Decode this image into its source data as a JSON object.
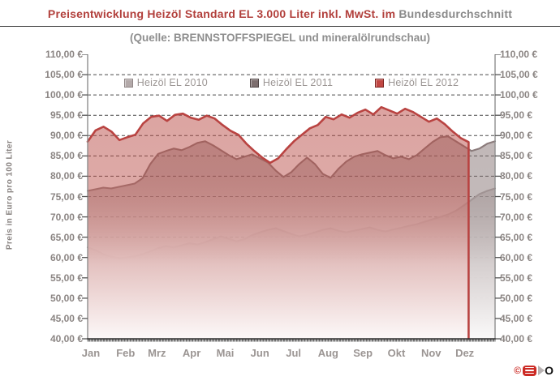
{
  "title": {
    "red_part": "Preisentwicklung Heizöl Standard EL 3.000 Liter inkl. MwSt. im",
    "gray_part": "Bundesdurchschnitt"
  },
  "subtitle": "(Quelle: BRENNSTOFFSPIEGEL und mineralölrundschau)",
  "y_axis": {
    "title": "Preis in Euro pro 100 Liter",
    "min": 40,
    "max": 110,
    "step": 5,
    "tick_labels": [
      "110,00 €",
      "105,00 €",
      "100,00 €",
      "95,00 €",
      "90,00 €",
      "85,00 €",
      "80,00 €",
      "75,00 €",
      "70,00 €",
      "65,00 €",
      "60,00 €",
      "55,00 €",
      "50,00 €",
      "45,00 €",
      "40,00 €"
    ]
  },
  "x_axis": {
    "months": [
      "Jan",
      "Feb",
      "Mrz",
      "Apr",
      "Mai",
      "Jun",
      "Jul",
      "Aug",
      "Sep",
      "Okt",
      "Nov",
      "Dez"
    ]
  },
  "legend": [
    {
      "label": "Heizöl EL 2010",
      "color": "#b3a9a9",
      "border": "#8f8585"
    },
    {
      "label": "Heizöl EL 2011",
      "color": "#7d6e6e",
      "border": "#4f4444"
    },
    {
      "label": "Heizöl EL 2012",
      "color": "#c14743",
      "border": "#7e2522"
    }
  ],
  "logo": {
    "copyright": "©",
    "o_letter": "O"
  },
  "colors": {
    "title_red": "#b2403c",
    "text_gray": "#8e8e8e",
    "grid": "#4a4a4a",
    "axis_border": "#8f8f8f",
    "axis_bottom": "#2f2f2f"
  },
  "chart_data": {
    "type": "area",
    "title": "Preisentwicklung Heizöl Standard EL 3.000 Liter inkl. MwSt. im Bundesdurchschnitt",
    "source": "Quelle: BRENNSTOFFSPIEGEL und mineralölrundschau",
    "ylabel": "Preis in Euro pro 100 Liter",
    "ylim": [
      40,
      110
    ],
    "ytick_step": 5,
    "x_categories": [
      "Jan",
      "Feb",
      "Mrz",
      "Apr",
      "Mai",
      "Jun",
      "Jul",
      "Aug",
      "Sep",
      "Okt",
      "Nov",
      "Dez"
    ],
    "grid": "horizontal-dashed",
    "legend_position": "top-center-inside",
    "x_resolution": "weekly values estimated from daily curve, Jan-Dez",
    "series": [
      {
        "name": "Heizöl EL 2010",
        "color": "#b3a9a9",
        "fill_rgb": "176,164,164",
        "line_width": 2.1,
        "coverage_fraction": 1.0,
        "values": [
          62.5,
          61.8,
          60.8,
          60.2,
          59.8,
          60.0,
          60.3,
          60.8,
          61.5,
          62.3,
          62.8,
          62.5,
          63.0,
          63.5,
          63.2,
          63.8,
          64.5,
          65.2,
          64.6,
          64.0,
          64.5,
          65.5,
          66.2,
          66.8,
          67.2,
          66.5,
          65.8,
          65.2,
          65.6,
          66.2,
          66.8,
          67.2,
          66.6,
          66.2,
          66.6,
          67.0,
          67.4,
          66.8,
          66.4,
          66.9,
          67.3,
          67.8,
          68.2,
          68.8,
          69.4,
          70.0,
          70.6,
          71.5,
          72.8,
          74.2,
          75.6,
          76.4,
          77.0
        ]
      },
      {
        "name": "Heizöl EL 2011",
        "color": "#8b7b7b",
        "fill_rgb": "128,110,110",
        "line_width": 2.1,
        "coverage_fraction": 1.0,
        "values": [
          76.4,
          76.8,
          77.2,
          77.0,
          77.4,
          77.8,
          78.2,
          79.5,
          83.0,
          85.5,
          86.2,
          86.8,
          86.4,
          87.2,
          88.2,
          88.6,
          87.6,
          86.4,
          85.2,
          84.2,
          84.8,
          85.4,
          84.4,
          83.4,
          81.4,
          79.8,
          81.0,
          83.0,
          84.6,
          83.0,
          80.6,
          79.6,
          81.8,
          83.6,
          84.8,
          85.4,
          85.8,
          86.2,
          85.2,
          84.4,
          84.8,
          84.2,
          85.2,
          86.8,
          88.4,
          89.6,
          89.8,
          88.6,
          87.4,
          86.2,
          86.8,
          88.0,
          88.6
        ]
      },
      {
        "name": "Heizöl EL 2012",
        "color": "#b94341",
        "fill_rgb": "184,74,68",
        "line_width": 2.6,
        "coverage_fraction": 0.935,
        "ends_with_vertical_drop": true,
        "values": [
          88.5,
          91.3,
          92.2,
          91.0,
          88.9,
          89.6,
          90.2,
          93.0,
          94.6,
          94.9,
          93.6,
          95.1,
          95.4,
          94.4,
          93.9,
          94.9,
          94.2,
          92.6,
          91.2,
          90.2,
          88.0,
          86.2,
          84.6,
          83.3,
          84.4,
          86.6,
          88.6,
          90.2,
          91.8,
          92.6,
          94.6,
          94.0,
          95.2,
          94.4,
          95.6,
          96.4,
          95.2,
          97.0,
          96.2,
          95.4,
          96.6,
          95.8,
          94.6,
          93.4,
          94.2,
          92.8,
          91.0,
          89.4,
          88.4
        ]
      }
    ]
  }
}
